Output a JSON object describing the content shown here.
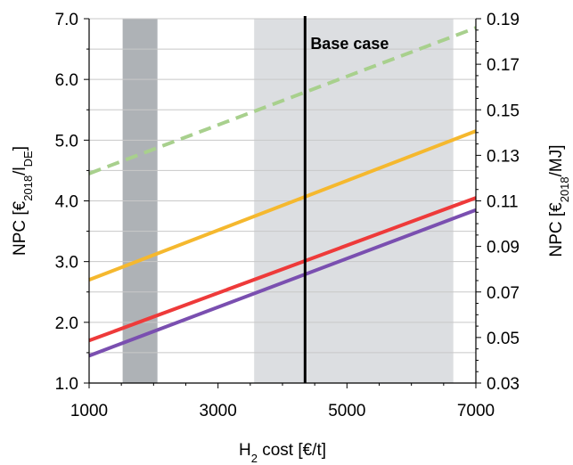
{
  "chart_data": {
    "type": "line",
    "xlabel": {
      "main": "H",
      "sub": "2",
      "rest": " cost [€/t]"
    },
    "ylabel_left": {
      "main": "NPC [€",
      "sub1": "2018",
      "mid": "/l",
      "sub2": "DE",
      "end": "]"
    },
    "ylabel_right": {
      "main": "NPC [€",
      "sub1": "2018",
      "end": "/MJ]"
    },
    "xlim": [
      1000,
      7000
    ],
    "ylim_left": [
      1.0,
      7.0
    ],
    "ylim_right": [
      0.03,
      0.19
    ],
    "x_ticks": [
      1000,
      3000,
      5000,
      7000
    ],
    "x_tick_labels": [
      "1000",
      "3000",
      "5000",
      "7000"
    ],
    "y_left_ticks": [
      1.0,
      2.0,
      3.0,
      4.0,
      5.0,
      6.0,
      7.0
    ],
    "y_left_tick_labels": [
      "1.0",
      "2.0",
      "3.0",
      "4.0",
      "5.0",
      "6.0",
      "7.0"
    ],
    "y_right_ticks": [
      0.03,
      0.05,
      0.07,
      0.09,
      0.11,
      0.13,
      0.15,
      0.17,
      0.19
    ],
    "y_right_tick_labels": [
      "0.03",
      "0.05",
      "0.07",
      "0.09",
      "0.11",
      "0.13",
      "0.15",
      "0.17",
      "0.19"
    ],
    "grid": true,
    "bands": [
      {
        "x0": 1520,
        "x1": 2060,
        "color": "#aeb2b6"
      },
      {
        "x0": 3560,
        "x1": 6650,
        "color": "#dcdee1"
      }
    ],
    "vline": {
      "x": 4350,
      "label": "Base case"
    },
    "series": [
      {
        "x": [
          1000,
          7000
        ],
        "y": [
          4.45,
          6.85
        ],
        "color": "#a8d08d",
        "dashed": true
      },
      {
        "x": [
          1000,
          7000
        ],
        "y": [
          2.7,
          5.15
        ],
        "color": "#f5b82e",
        "dashed": false
      },
      {
        "x": [
          1000,
          7000
        ],
        "y": [
          1.7,
          4.05
        ],
        "color": "#ee3a3a",
        "dashed": false
      },
      {
        "x": [
          1000,
          7000
        ],
        "y": [
          1.45,
          3.85
        ],
        "color": "#7a4fb0",
        "dashed": false
      }
    ]
  }
}
